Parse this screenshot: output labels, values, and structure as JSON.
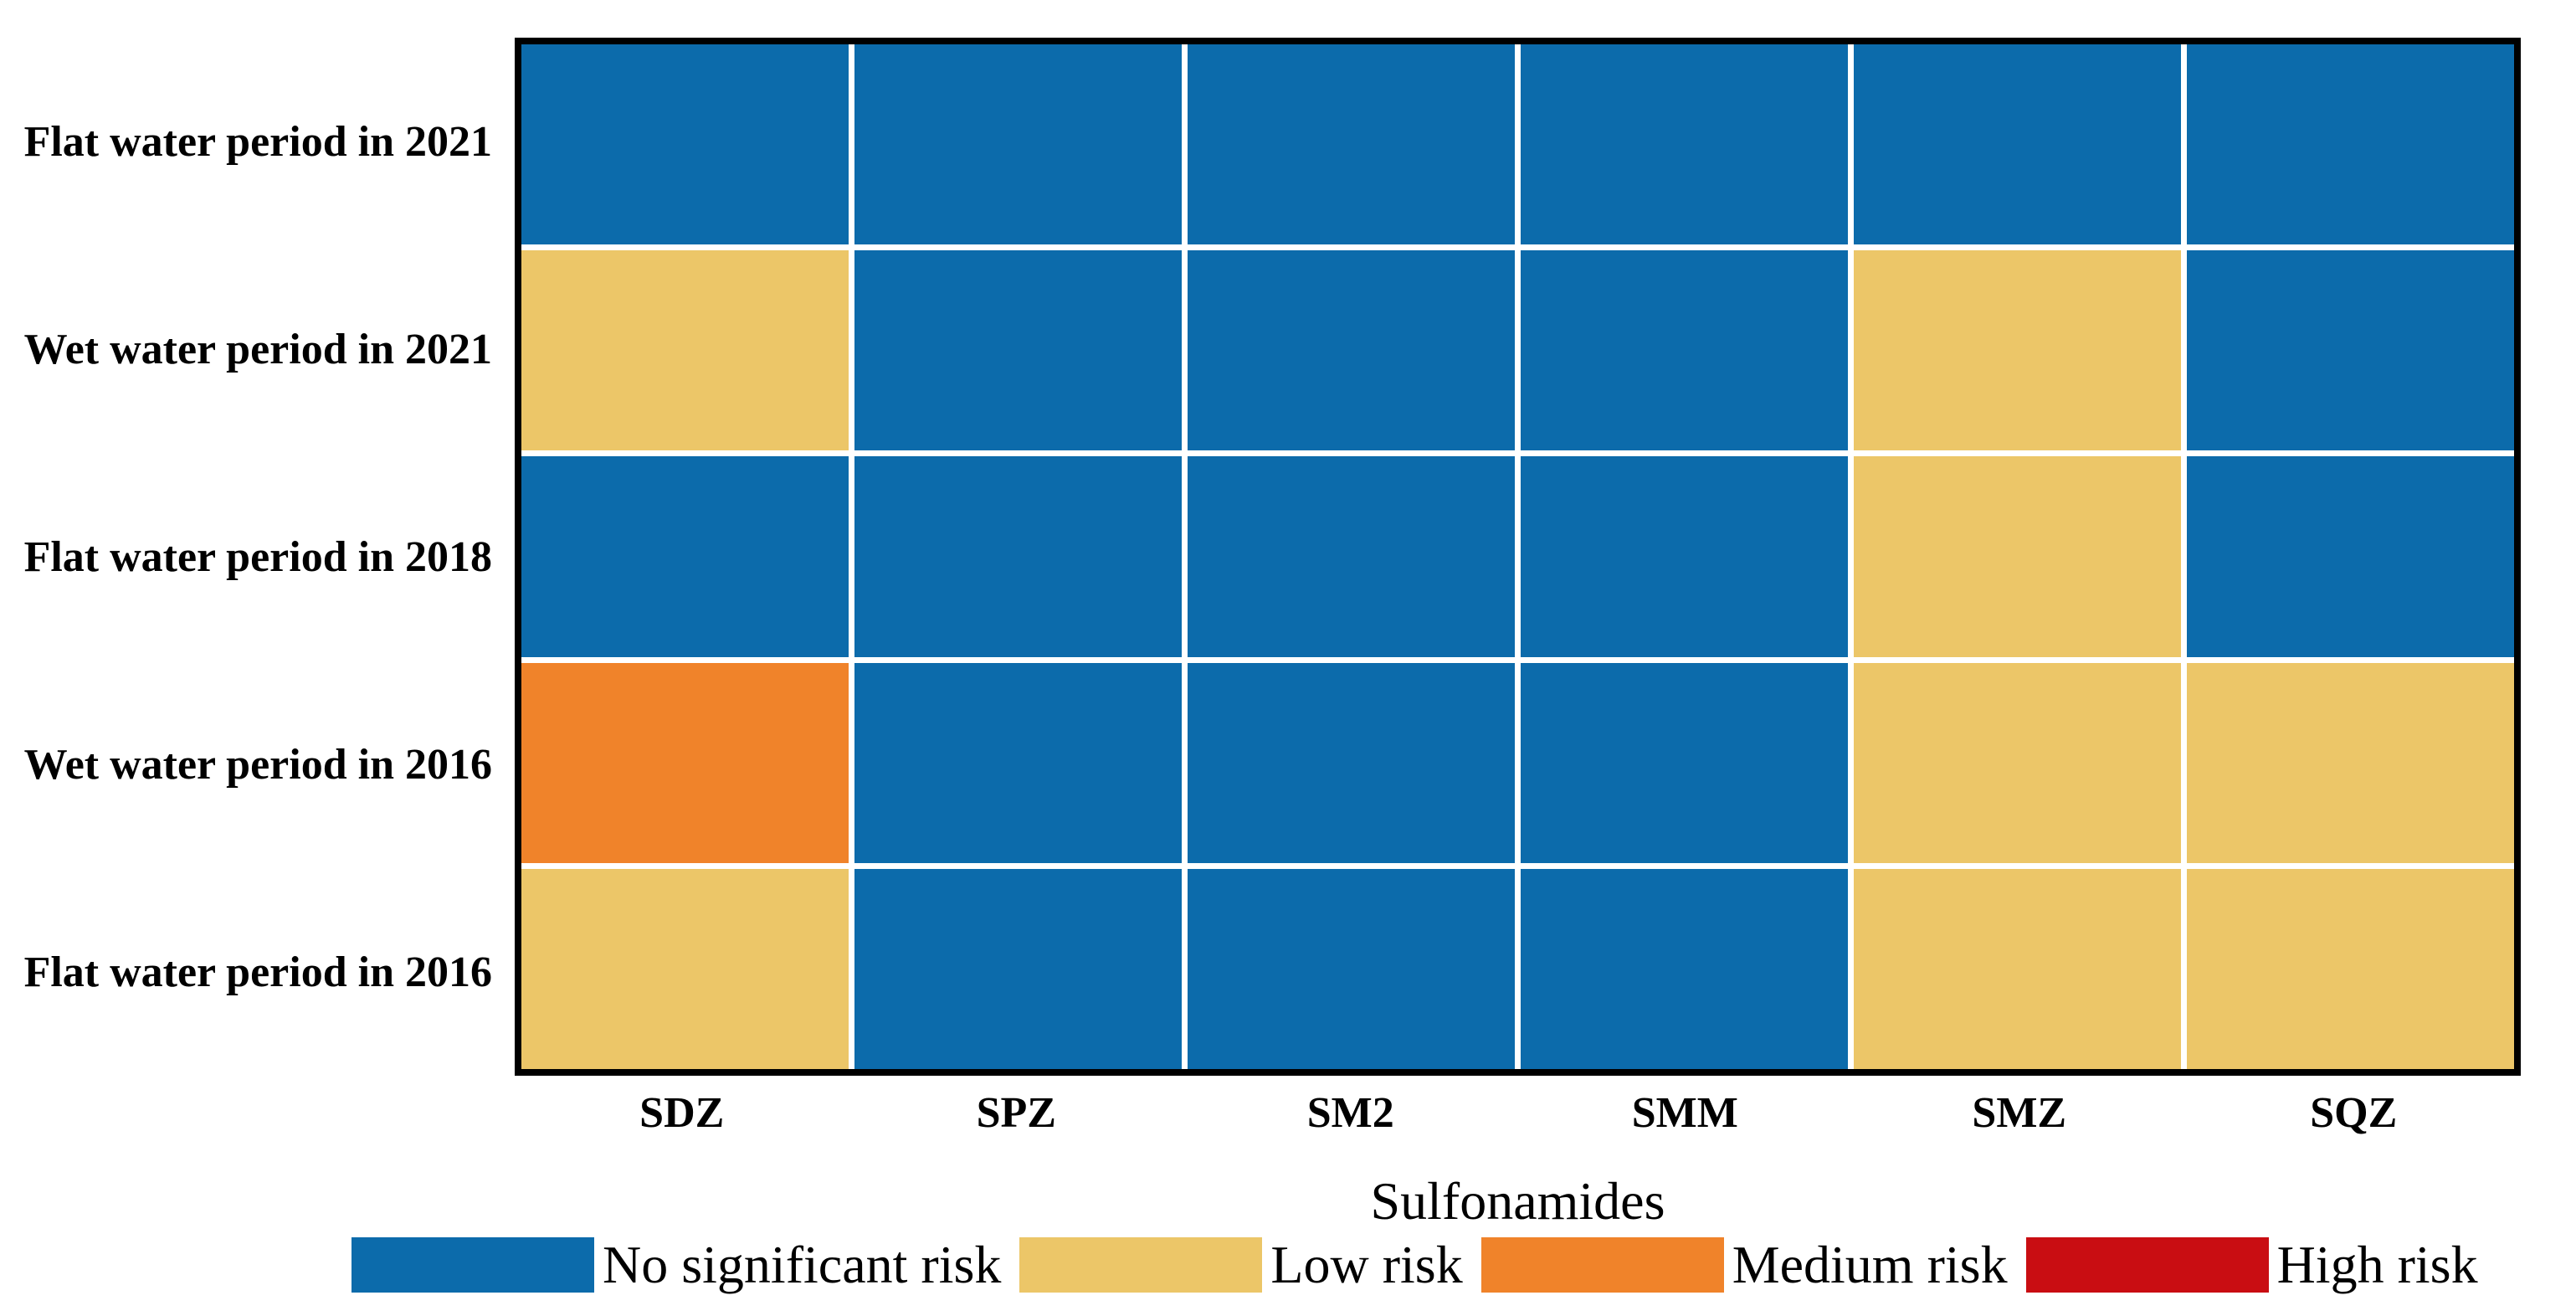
{
  "chart_data": {
    "type": "heatmap",
    "title": "",
    "xlabel": "Sulfonamides",
    "ylabel": "",
    "columns": [
      "SDZ",
      "SPZ",
      "SM2",
      "SMM",
      "SMZ",
      "SQZ"
    ],
    "rows": [
      "Flat water period in 2021",
      "Wet water period in 2021",
      "Flat water period in 2018",
      "Wet water period in 2016",
      "Flat water period in 2016"
    ],
    "values": [
      [
        "no",
        "no",
        "no",
        "no",
        "no",
        "no"
      ],
      [
        "low",
        "no",
        "no",
        "no",
        "low",
        "no"
      ],
      [
        "no",
        "no",
        "no",
        "no",
        "low",
        "no"
      ],
      [
        "medium",
        "no",
        "no",
        "no",
        "low",
        "low"
      ],
      [
        "low",
        "no",
        "no",
        "no",
        "low",
        "low"
      ]
    ],
    "levels": {
      "no": {
        "label": "No significant risk",
        "color": "#0c6bab"
      },
      "low": {
        "label": "Low risk",
        "color": "#ecc668"
      },
      "medium": {
        "label": "Medium risk",
        "color": "#f0832a"
      },
      "high": {
        "label": "High risk",
        "color": "#c90d12"
      }
    },
    "legend": [
      {
        "level": "no",
        "label": "No significant risk",
        "color": "#0c6bab"
      },
      {
        "level": "low",
        "label": "Low risk",
        "color": "#ecc668"
      },
      {
        "level": "medium",
        "label": "Medium risk",
        "color": "#f0832a"
      },
      {
        "level": "high",
        "label": "High risk",
        "color": "#c90d12"
      }
    ],
    "legend_position": "bottom",
    "grid_line_color": "#ffffff",
    "plot_border_color": "#000000",
    "background_color": "#ffffff"
  }
}
